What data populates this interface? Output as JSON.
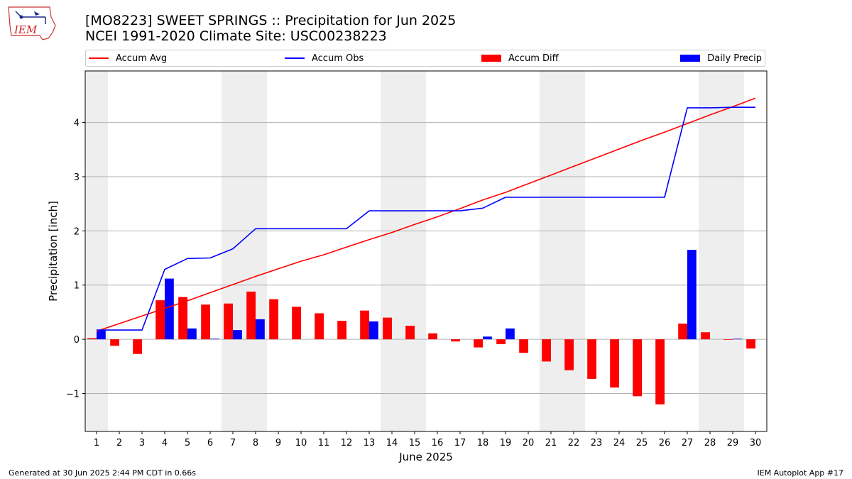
{
  "header": {
    "title_line1": "[MO8223] SWEET SPRINGS :: Precipitation for Jun 2025",
    "title_line2": "NCEI 1991-2020 Climate Site: USC00238223",
    "logo_text": "IEM"
  },
  "legend": {
    "items": [
      {
        "label": "Accum Avg",
        "kind": "line",
        "color": "#ff0000"
      },
      {
        "label": "Accum Obs",
        "kind": "line",
        "color": "#0000ff"
      },
      {
        "label": "Accum Diff",
        "kind": "bar",
        "color": "#ff0000"
      },
      {
        "label": "Daily Precip",
        "kind": "bar",
        "color": "#0000ff"
      }
    ]
  },
  "footer": {
    "left": "Generated at 30 Jun 2025 2:44 PM CDT in 0.66s",
    "right": "IEM Autoplot App #17"
  },
  "chart_data": {
    "type": "bar",
    "xlabel": "June 2025",
    "ylabel": "Precipitation [inch]",
    "ylim": [
      -1.7,
      4.95
    ],
    "yticks": [
      -1,
      0,
      1,
      2,
      3,
      4
    ],
    "ytick_labels": [
      "−1",
      "0",
      "1",
      "2",
      "3",
      "4"
    ],
    "grid": true,
    "legend_position": "top",
    "days": [
      1,
      2,
      3,
      4,
      5,
      6,
      7,
      8,
      9,
      10,
      11,
      12,
      13,
      14,
      15,
      16,
      17,
      18,
      19,
      20,
      21,
      22,
      23,
      24,
      25,
      26,
      27,
      28,
      29,
      30
    ],
    "weekend_shading": [
      [
        1,
        1
      ],
      [
        7,
        8
      ],
      [
        14,
        15
      ],
      [
        21,
        22
      ],
      [
        28,
        29
      ]
    ],
    "colors": {
      "avg": "#ff0000",
      "obs": "#0000ff",
      "diff": "#ff0000",
      "daily": "#0000ff",
      "shade": "#eeeeee",
      "grid": "#b0b0b0"
    },
    "series": [
      {
        "name": "Accum Avg",
        "type": "line",
        "values": [
          0.15,
          0.29,
          0.43,
          0.57,
          0.71,
          0.86,
          1.01,
          1.16,
          1.3,
          1.44,
          1.56,
          1.7,
          1.84,
          1.97,
          2.12,
          2.26,
          2.41,
          2.57,
          2.71,
          2.87,
          3.03,
          3.19,
          3.35,
          3.51,
          3.67,
          3.82,
          3.98,
          4.14,
          4.29,
          4.45
        ]
      },
      {
        "name": "Accum Obs",
        "type": "line",
        "values": [
          0.17,
          0.17,
          0.17,
          1.29,
          1.49,
          1.5,
          1.67,
          2.04,
          2.04,
          2.04,
          2.04,
          2.04,
          2.37,
          2.37,
          2.37,
          2.37,
          2.37,
          2.42,
          2.62,
          2.62,
          2.62,
          2.62,
          2.62,
          2.62,
          2.62,
          2.62,
          4.27,
          4.27,
          4.28,
          4.28
        ]
      },
      {
        "name": "Accum Diff",
        "type": "bar",
        "values": [
          0.02,
          -0.12,
          -0.27,
          0.72,
          0.78,
          0.64,
          0.66,
          0.88,
          0.74,
          0.6,
          0.48,
          0.34,
          0.53,
          0.4,
          0.25,
          0.11,
          -0.04,
          -0.15,
          -0.09,
          -0.25,
          -0.41,
          -0.57,
          -0.73,
          -0.89,
          -1.05,
          -1.2,
          0.29,
          0.13,
          -0.01,
          -0.17
        ]
      },
      {
        "name": "Daily Precip",
        "type": "bar",
        "values": [
          0.17,
          0,
          0,
          1.12,
          0.2,
          0.01,
          0.17,
          0.37,
          0,
          0,
          0,
          0,
          0.33,
          0,
          0,
          0,
          0,
          0.05,
          0.2,
          0,
          0,
          0,
          0,
          0,
          0,
          0,
          1.65,
          0,
          0.01,
          0
        ]
      }
    ]
  }
}
